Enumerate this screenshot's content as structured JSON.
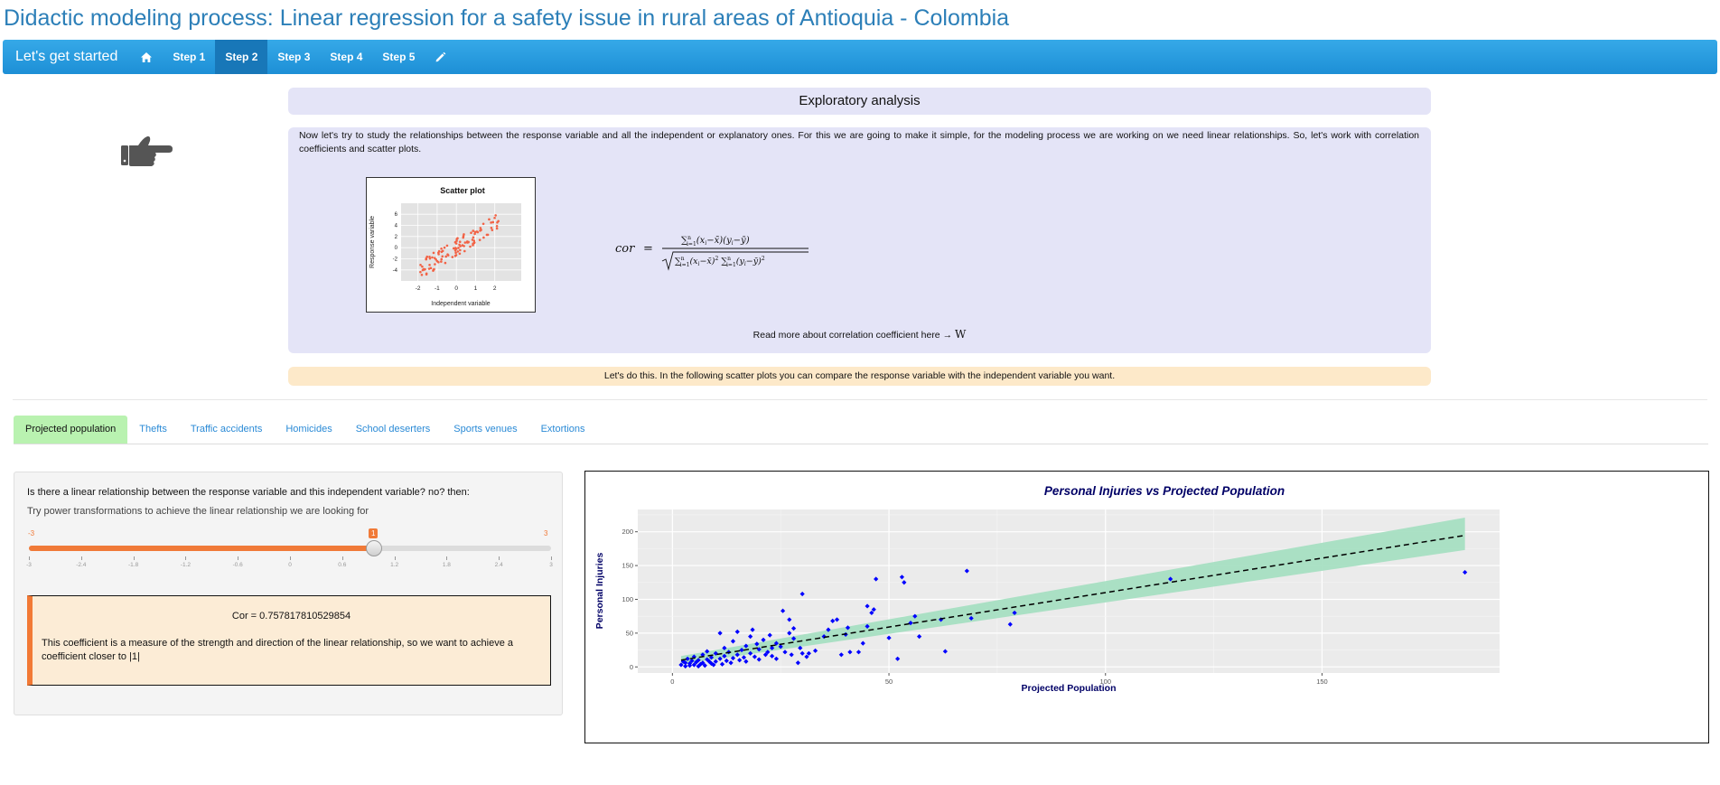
{
  "app": {
    "title": "Didactic modeling process: Linear regression for a safety issue in rural areas of Antioquia - Colombia"
  },
  "navbar": {
    "brand": "Let's get started",
    "home_icon": "home-icon",
    "items": [
      {
        "label": "Step 1",
        "active": false
      },
      {
        "label": "Step 2",
        "active": true
      },
      {
        "label": "Step 3",
        "active": false
      },
      {
        "label": "Step 4",
        "active": false
      },
      {
        "label": "Step 5",
        "active": false
      }
    ],
    "edit_icon": "pencil-icon"
  },
  "side_icon": "hand-point-right-icon",
  "section": {
    "heading": "Exploratory analysis",
    "intro": "Now let's try to study the relationships between the response variable and all the independent or explanatory ones. For this we are going to make it simple, for the modeling process we are working on we need linear relationships. So, let's work with correlation coefficients and scatter plots.",
    "thumbnail": {
      "title": "Scatter plot",
      "xlabel": "Independent variable",
      "ylabel": "Response variable",
      "x_ticks": [
        "-2",
        "-1",
        "0",
        "1",
        "2"
      ],
      "y_ticks": [
        "-4",
        "-2",
        "0",
        "2",
        "4",
        "6"
      ]
    },
    "formula_lhs": "cor",
    "read_more": "Read more about correlation coefficient here →",
    "read_more_link": "W",
    "notice": "Let's do this. In the following scatter plots you can compare the response variable with the independent variable you want."
  },
  "tabs": [
    {
      "label": "Projected population",
      "active": true
    },
    {
      "label": "Thefts",
      "active": false
    },
    {
      "label": "Traffic accidents",
      "active": false
    },
    {
      "label": "Homicides",
      "active": false
    },
    {
      "label": "School deserters",
      "active": false
    },
    {
      "label": "Sports venues",
      "active": false
    },
    {
      "label": "Extortions",
      "active": false
    }
  ],
  "panel": {
    "question": "Is there a linear relationship between the response variable and this independent variable? no? then:",
    "hint": "Try power transformations to achieve the linear relationship we are looking for",
    "slider": {
      "min": -3,
      "max": 3,
      "value": 1,
      "min_label": "-3",
      "max_label": "3",
      "value_label": "1",
      "ticks": [
        "-3",
        "-2.4",
        "-1.8",
        "-1.2",
        "-0.6",
        "0",
        "0.6",
        "1.2",
        "1.8",
        "2.4",
        "3"
      ]
    },
    "cor_value": "Cor = 0.757817810529854",
    "cor_note": "This coefficient is a measure of the strength and direction of the linear relationship, so we want to achieve a coefficient closer to |1|"
  },
  "colors": {
    "accent": "#f07a38",
    "nav": "#1d8fd6",
    "points": "#0000ff",
    "band": "#a6dfc2",
    "title": "#000066"
  },
  "chart_data": {
    "type": "scatter",
    "title": "Personal Injuries vs Projected Population",
    "xlabel": "Projected Population",
    "ylabel": "Personal Injuries",
    "xlim": [
      -8,
      191
    ],
    "ylim": [
      -9,
      233
    ],
    "x_ticks": [
      0,
      50,
      100,
      150
    ],
    "y_ticks": [
      0,
      50,
      100,
      150,
      200
    ],
    "grid": true,
    "fit": {
      "intercept": 8,
      "slope": 1.02,
      "x_range": [
        2,
        183
      ],
      "band_end_lower": 173,
      "band_end_upper": 221
    },
    "points": [
      [
        2,
        3
      ],
      [
        2.5,
        8
      ],
      [
        3,
        1
      ],
      [
        3,
        6
      ],
      [
        3.5,
        12
      ],
      [
        4,
        2
      ],
      [
        4,
        5
      ],
      [
        4.5,
        9
      ],
      [
        5,
        3
      ],
      [
        5,
        15
      ],
      [
        5.5,
        7
      ],
      [
        6,
        1
      ],
      [
        6,
        10
      ],
      [
        6.5,
        4
      ],
      [
        7,
        18
      ],
      [
        7,
        6
      ],
      [
        7.5,
        2
      ],
      [
        8,
        11
      ],
      [
        8,
        23
      ],
      [
        8.5,
        8
      ],
      [
        9,
        5
      ],
      [
        9,
        14
      ],
      [
        9.5,
        3
      ],
      [
        10,
        20
      ],
      [
        10,
        8
      ],
      [
        11,
        12
      ],
      [
        11,
        50
      ],
      [
        11.5,
        4
      ],
      [
        12,
        16
      ],
      [
        12,
        28
      ],
      [
        12.5,
        9
      ],
      [
        13,
        22
      ],
      [
        13.5,
        6
      ],
      [
        14,
        13
      ],
      [
        14,
        38
      ],
      [
        15,
        18
      ],
      [
        15,
        52
      ],
      [
        15.5,
        10
      ],
      [
        16,
        25
      ],
      [
        16.5,
        14
      ],
      [
        17,
        31
      ],
      [
        17,
        8
      ],
      [
        18,
        45
      ],
      [
        18,
        20
      ],
      [
        18.5,
        55
      ],
      [
        19,
        15
      ],
      [
        19.5,
        34
      ],
      [
        20,
        26
      ],
      [
        20,
        11
      ],
      [
        21,
        40
      ],
      [
        21.5,
        18
      ],
      [
        22,
        22
      ],
      [
        22.5,
        47
      ],
      [
        23,
        28
      ],
      [
        23,
        16
      ],
      [
        24,
        35
      ],
      [
        24,
        12
      ],
      [
        25,
        30
      ],
      [
        25.5,
        83
      ],
      [
        26,
        22
      ],
      [
        27,
        50
      ],
      [
        27,
        70
      ],
      [
        27.5,
        18
      ],
      [
        28,
        57
      ],
      [
        28,
        42
      ],
      [
        29,
        6
      ],
      [
        29.5,
        28
      ],
      [
        30,
        108
      ],
      [
        30,
        20
      ],
      [
        31,
        15
      ],
      [
        31.5,
        20
      ],
      [
        33,
        24
      ],
      [
        35,
        45
      ],
      [
        36,
        55
      ],
      [
        37,
        68
      ],
      [
        38,
        70
      ],
      [
        39,
        18
      ],
      [
        40,
        48
      ],
      [
        40.5,
        58
      ],
      [
        41,
        22
      ],
      [
        43,
        22
      ],
      [
        44,
        35
      ],
      [
        45,
        60
      ],
      [
        45,
        90
      ],
      [
        46,
        80
      ],
      [
        46.5,
        85
      ],
      [
        47,
        130
      ],
      [
        50,
        43
      ],
      [
        52,
        12
      ],
      [
        53,
        133
      ],
      [
        53.5,
        125
      ],
      [
        55,
        65
      ],
      [
        56,
        75
      ],
      [
        57,
        45
      ],
      [
        62,
        70
      ],
      [
        63,
        23
      ],
      [
        68,
        142
      ],
      [
        69,
        72
      ],
      [
        78,
        63
      ],
      [
        79,
        80
      ],
      [
        115,
        130
      ],
      [
        183,
        140
      ]
    ]
  }
}
